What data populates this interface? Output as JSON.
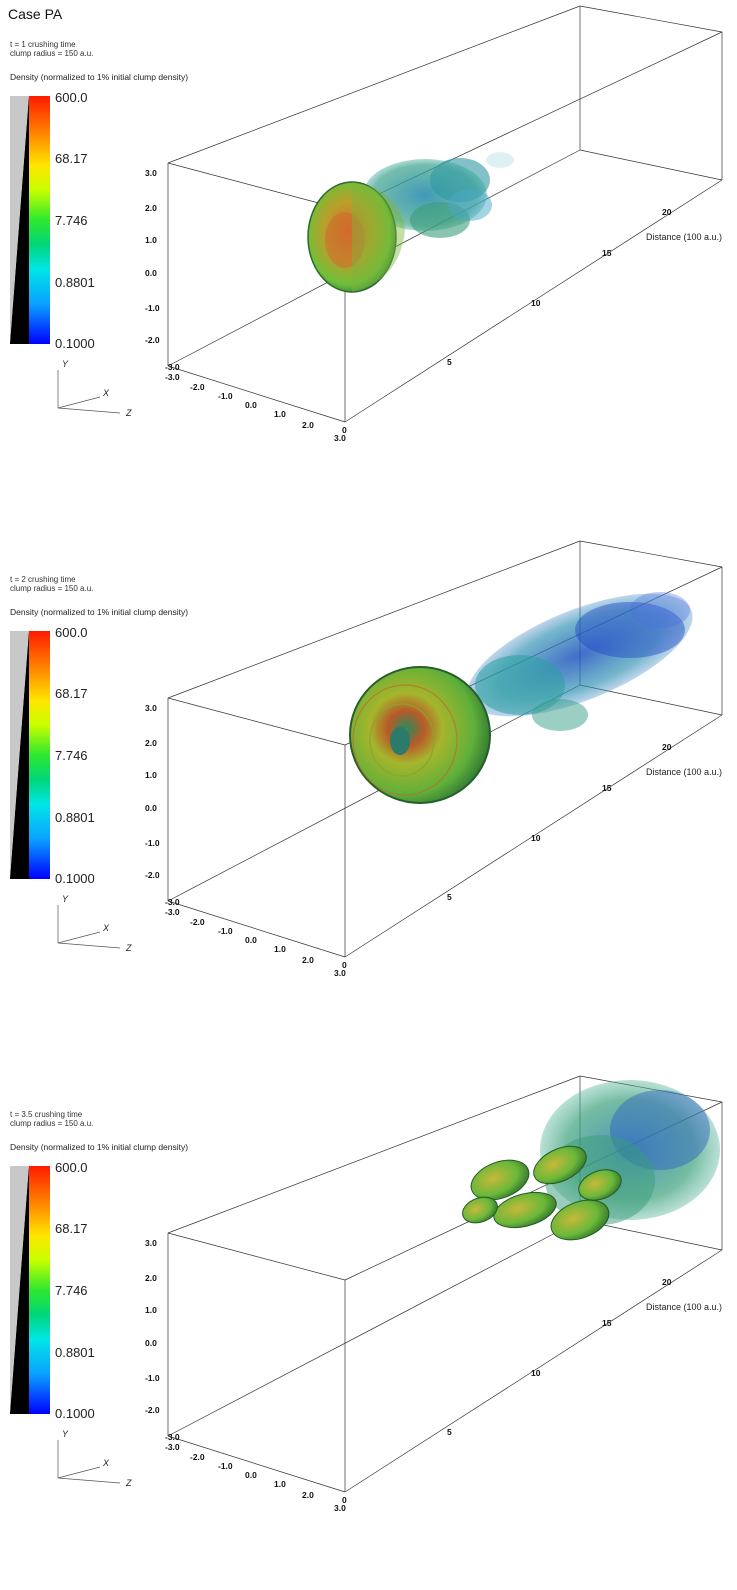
{
  "case_title": "Case PA",
  "panels": [
    {
      "time_text": "t = 1 crushing time",
      "radius_text": "clump radius = 150 a.u.",
      "density_label": "Density (normalized to 1% initial clump density)",
      "colorbar_labels": [
        "600.0",
        "68.17",
        "7.746",
        "0.8801",
        "0.1000"
      ],
      "y_ticks": [
        "3.0",
        "2.0",
        "1.0",
        "0.0",
        "-1.0",
        "-2.0",
        "-3.0"
      ],
      "x_ticks": [
        "-3.0",
        "-2.0",
        "-1.0",
        "0.0",
        "1.0",
        "2.0",
        "3.0"
      ],
      "z_ticks": [
        "0",
        "5",
        "10",
        "15",
        "20"
      ],
      "distance_label": "Distance (100 a.u.)",
      "axis_letters": {
        "y": "Y",
        "x": "X",
        "z": "Z"
      }
    },
    {
      "time_text": "t = 2 crushing time",
      "radius_text": "clump radius = 150 a.u.",
      "density_label": "Density (normalized to 1% initial clump density)",
      "colorbar_labels": [
        "600.0",
        "68.17",
        "7.746",
        "0.8801",
        "0.1000"
      ],
      "y_ticks": [
        "3.0",
        "2.0",
        "1.0",
        "0.0",
        "-1.0",
        "-2.0",
        "-3.0"
      ],
      "x_ticks": [
        "-3.0",
        "-2.0",
        "-1.0",
        "0.0",
        "1.0",
        "2.0",
        "3.0"
      ],
      "z_ticks": [
        "0",
        "5",
        "10",
        "15",
        "20"
      ],
      "distance_label": "Distance (100 a.u.)",
      "axis_letters": {
        "y": "Y",
        "x": "X",
        "z": "Z"
      }
    },
    {
      "time_text": "t = 3.5 crushing time",
      "radius_text": "clump radius = 150 a.u.",
      "density_label": "Density (normalized to 1% initial clump density)",
      "colorbar_labels": [
        "600.0",
        "68.17",
        "7.746",
        "0.8801",
        "0.1000"
      ],
      "y_ticks": [
        "3.0",
        "2.0",
        "1.0",
        "0.0",
        "-1.0",
        "-2.0",
        "-3.0"
      ],
      "x_ticks": [
        "-3.0",
        "-2.0",
        "-1.0",
        "0.0",
        "1.0",
        "2.0",
        "3.0"
      ],
      "z_ticks": [
        "0",
        "5",
        "10",
        "15",
        "20"
      ],
      "distance_label": "Distance (100 a.u.)",
      "axis_letters": {
        "y": "Y",
        "x": "X",
        "z": "Z"
      }
    }
  ],
  "colors": {
    "colormap_top": "#ff1a00",
    "colormap_mid": "#2ee82e",
    "colormap_bottom": "#0000ff",
    "frame_line": "#333333"
  }
}
